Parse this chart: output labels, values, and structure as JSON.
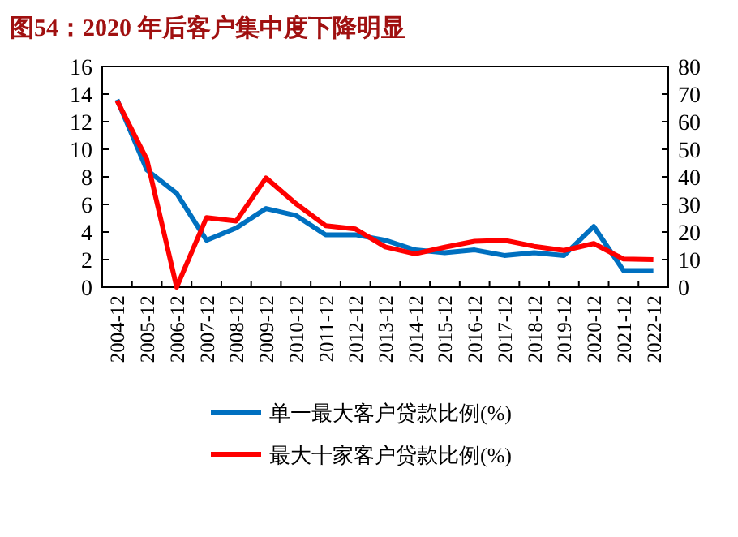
{
  "chart_data": {
    "type": "line",
    "title": "图54：2020 年后客户集中度下降明显",
    "categories": [
      "2004-12",
      "2005-12",
      "2006-12",
      "2007-12",
      "2008-12",
      "2009-12",
      "2010-12",
      "2011-12",
      "2012-12",
      "2013-12",
      "2014-12",
      "2015-12",
      "2016-12",
      "2017-12",
      "2018-12",
      "2019-12",
      "2020-12",
      "2021-12",
      "2022-12"
    ],
    "series": [
      {
        "name": "单一最大客户贷款比例(%)",
        "color": "#0070c0",
        "values": [
          13.6,
          8.5,
          6.8,
          3.4,
          4.3,
          5.7,
          5.2,
          3.8,
          3.8,
          3.4,
          2.7,
          2.5,
          2.7,
          2.3,
          2.5,
          2.3,
          4.4,
          1.2,
          1.2
        ]
      },
      {
        "name": "最大十家客户贷款比例(%)",
        "color": "#ff0000",
        "axis": "y2",
        "values": [
          67.6,
          46.3,
          0,
          25.2,
          24,
          39.6,
          30.3,
          22.3,
          21.1,
          14.6,
          12.1,
          14.5,
          16.6,
          17,
          14.8,
          13.3,
          15.8,
          10.2,
          10
        ]
      }
    ],
    "ylim": [
      0,
      16
    ],
    "yticks": [
      0,
      2,
      4,
      6,
      8,
      10,
      12,
      14,
      16
    ],
    "y2lim": [
      0,
      80
    ],
    "y2ticks": [
      0,
      10,
      20,
      30,
      40,
      50,
      60,
      70,
      80
    ],
    "legend": "bottom",
    "grid": false
  }
}
